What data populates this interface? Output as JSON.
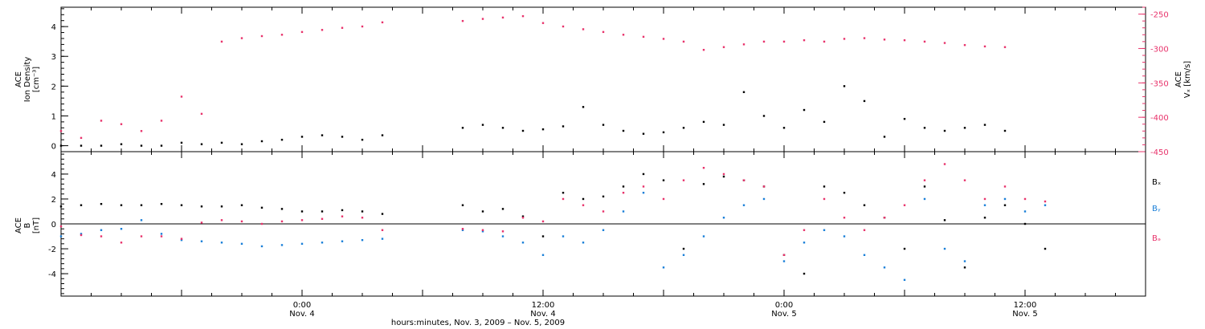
{
  "colors": {
    "black": "#000000",
    "pink": "#e8336b",
    "blue": "#1a7fd8"
  },
  "chart_data": [
    {
      "type": "scatter",
      "panel": "density-vx",
      "left_axis": {
        "label_lines": [
          "ACE",
          "Ion Density",
          "[cm⁻³]"
        ],
        "ylim": [
          -0.2,
          4.65
        ],
        "ticks": [
          "0",
          "1",
          "2",
          "3",
          "4"
        ],
        "tick_values": [
          0,
          1,
          2,
          3,
          4
        ]
      },
      "right_axis": {
        "label_lines": [
          "ACE",
          "Vₓ [km/s]"
        ],
        "ylim": [
          -450,
          -240
        ],
        "ticks": [
          "-250",
          "-300",
          "-350",
          "-400",
          "-450"
        ],
        "tick_values": [
          -250,
          -300,
          -350,
          -400,
          -450
        ]
      },
      "series": [
        {
          "color": "#000000",
          "axis": "left",
          "x": [
            0,
            2,
            4,
            6,
            8,
            10,
            12,
            14,
            16,
            18,
            20,
            22,
            24,
            26,
            28,
            30,
            32,
            34,
            36,
            38,
            40,
            42,
            44,
            46,
            48,
            50,
            52,
            54,
            56,
            58,
            60,
            62,
            64,
            66,
            68,
            70,
            72,
            74,
            76,
            78,
            80,
            82,
            84,
            86,
            88,
            90,
            92,
            94
          ],
          "y": [
            0.0,
            0.0,
            0.0,
            0.05,
            0.0,
            0.0,
            0.1,
            0.05,
            0.1,
            0.05,
            0.15,
            0.2,
            0.3,
            0.35,
            0.3,
            0.2,
            0.35,
            null,
            null,
            null,
            0.6,
            0.7,
            0.6,
            0.5,
            0.55,
            0.65,
            1.3,
            0.7,
            0.5,
            0.4,
            0.45,
            0.6,
            0.8,
            0.7,
            1.8,
            1.0,
            0.6,
            1.2,
            0.8,
            2.0,
            1.5,
            0.3,
            0.9,
            0.6,
            0.5,
            0.6,
            0.7,
            0.5
          ]
        },
        {
          "color": "#e8336b",
          "axis": "right",
          "x": [
            0,
            2,
            4,
            6,
            8,
            10,
            12,
            14,
            16,
            18,
            20,
            22,
            24,
            26,
            28,
            30,
            32,
            34,
            36,
            38,
            40,
            42,
            44,
            46,
            48,
            50,
            52,
            54,
            56,
            58,
            60,
            62,
            64,
            66,
            68,
            70,
            72,
            74,
            76,
            78,
            80,
            82,
            84,
            86,
            88,
            90,
            92,
            94
          ],
          "y": [
            -420,
            -430,
            -405,
            -410,
            -420,
            -405,
            -370,
            -395,
            -290,
            -285,
            -282,
            -280,
            -276,
            -273,
            -270,
            -268,
            -262,
            null,
            null,
            null,
            -260,
            -257,
            -255,
            -253,
            -263,
            -268,
            -272,
            -276,
            -280,
            -283,
            -286,
            -290,
            -302,
            -298,
            -294,
            -290,
            -290,
            -288,
            -290,
            -286,
            -285,
            -287,
            -288,
            -290,
            -292,
            -295,
            -297,
            -298
          ]
        }
      ]
    },
    {
      "type": "scatter",
      "panel": "magnetic-field",
      "left_axis": {
        "label_lines": [
          "ACE",
          "B",
          "[nT]"
        ],
        "ylim": [
          -5.8,
          5.8
        ],
        "ticks": [
          "-4",
          "-2",
          "0",
          "2",
          "4"
        ],
        "tick_values": [
          -4,
          -2,
          0,
          2,
          4
        ]
      },
      "xlabel": "hours:minutes, Nov. 3, 2009 – Nov. 5, 2009",
      "xlim": [
        0,
        108
      ],
      "x_ticks": [
        {
          "value": 24,
          "time": "0:00",
          "date": "Nov. 4"
        },
        {
          "value": 48,
          "time": "12:00",
          "date": "Nov. 4"
        },
        {
          "value": 72,
          "time": "0:00",
          "date": "Nov. 5"
        },
        {
          "value": 96,
          "time": "12:00",
          "date": "Nov. 5"
        }
      ],
      "legend": [
        "Bₓ",
        "Bᵧ",
        "Bₔ"
      ],
      "legend_placement": "right",
      "zero_line": true,
      "series": [
        {
          "name": "Bₓ",
          "color": "#000000",
          "x": [
            0,
            2,
            4,
            6,
            8,
            10,
            12,
            14,
            16,
            18,
            20,
            22,
            24,
            26,
            28,
            30,
            32,
            34,
            36,
            38,
            40,
            42,
            44,
            46,
            48,
            50,
            52,
            54,
            56,
            58,
            60,
            62,
            64,
            66,
            68,
            70,
            72,
            74,
            76,
            78,
            80,
            82,
            84,
            86,
            88,
            90,
            92,
            94,
            96,
            98
          ],
          "y": [
            1.4,
            1.5,
            1.6,
            1.5,
            1.5,
            1.6,
            1.5,
            1.4,
            1.4,
            1.5,
            1.3,
            1.2,
            1.0,
            1.0,
            1.1,
            1.0,
            0.8,
            null,
            null,
            null,
            1.5,
            1.0,
            1.2,
            0.6,
            -1.0,
            2.5,
            2.0,
            2.2,
            3.0,
            4.0,
            3.5,
            -2.0,
            3.2,
            3.8,
            3.5,
            3.0,
            -2.5,
            -4.0,
            3.0,
            2.5,
            1.5,
            0.5,
            -2.0,
            3.0,
            0.3,
            -3.5,
            0.5,
            1.5,
            0.0,
            -2.0
          ]
        },
        {
          "name": "Bᵧ",
          "color": "#1a7fd8",
          "x": [
            0,
            2,
            4,
            6,
            8,
            10,
            12,
            14,
            16,
            18,
            20,
            22,
            24,
            26,
            28,
            30,
            32,
            34,
            36,
            38,
            40,
            42,
            44,
            46,
            48,
            50,
            52,
            54,
            56,
            58,
            60,
            62,
            64,
            66,
            68,
            70,
            72,
            74,
            76,
            78,
            80,
            82,
            84,
            86,
            88,
            90,
            92,
            94,
            96,
            98
          ],
          "y": [
            -1.0,
            -0.8,
            -0.5,
            -0.4,
            0.3,
            -0.8,
            -1.3,
            -1.4,
            -1.5,
            -1.6,
            -1.8,
            -1.7,
            -1.6,
            -1.5,
            -1.4,
            -1.3,
            -1.2,
            null,
            null,
            null,
            -0.5,
            -0.6,
            -1.0,
            -1.5,
            -2.5,
            -1.0,
            -1.5,
            -0.5,
            1.0,
            2.5,
            -3.5,
            -2.5,
            -1.0,
            0.5,
            1.5,
            2.0,
            -3.0,
            -1.5,
            -0.5,
            -1.0,
            -2.5,
            -3.5,
            -4.5,
            2.0,
            -2.0,
            -3.0,
            1.5,
            2.0,
            1.0,
            1.5
          ]
        },
        {
          "name": "Bₔ",
          "color": "#e8336b",
          "x": [
            0,
            2,
            4,
            6,
            8,
            10,
            12,
            14,
            16,
            18,
            20,
            22,
            24,
            26,
            28,
            30,
            32,
            34,
            36,
            38,
            40,
            42,
            44,
            46,
            48,
            50,
            52,
            54,
            56,
            58,
            60,
            62,
            64,
            66,
            68,
            70,
            72,
            74,
            76,
            78,
            80,
            82,
            84,
            86,
            88,
            90,
            92,
            94,
            96,
            98
          ],
          "y": [
            -0.2,
            -0.9,
            -1.0,
            -1.5,
            -1.0,
            -1.0,
            -1.2,
            0.1,
            0.3,
            0.2,
            0.0,
            0.2,
            0.3,
            0.4,
            0.6,
            0.5,
            -0.5,
            null,
            null,
            null,
            -0.4,
            -0.5,
            -0.6,
            0.5,
            0.2,
            2.0,
            1.5,
            1.0,
            2.5,
            3.0,
            2.0,
            3.5,
            4.5,
            4.0,
            3.5,
            3.0,
            -2.5,
            -0.5,
            2.0,
            0.5,
            -0.5,
            0.5,
            1.5,
            3.5,
            4.8,
            3.5,
            2.0,
            3.0,
            2.0,
            1.8
          ]
        }
      ]
    }
  ]
}
